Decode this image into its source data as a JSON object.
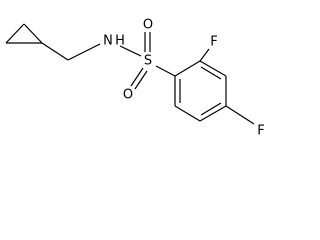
{
  "nodes": [
    {
      "label": "N"
    },
    {
      "label": "H"
    },
    {
      "label": "S"
    },
    {
      "label": "O"
    },
    {
      "label": "O"
    },
    {
      "label": "F"
    },
    {
      "label": "F"
    }
  ]
}
